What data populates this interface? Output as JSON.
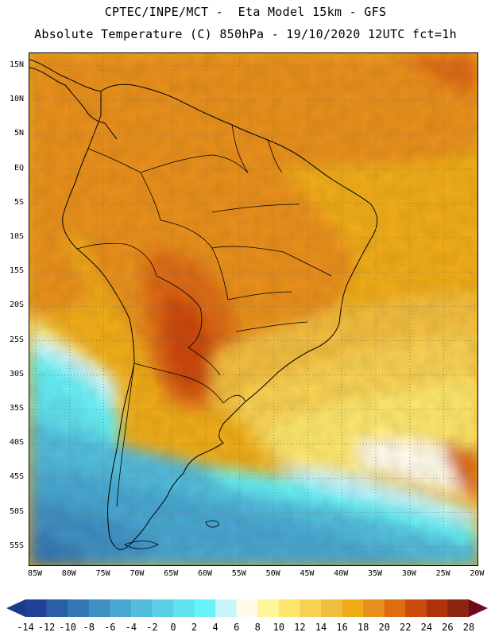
{
  "title": {
    "line1": "CPTEC/INPE/MCT -  Eta Model 15km - GFS",
    "line2": "Absolute Temperature (C) 850hPa - 19/10/2020 12UTC fct=1h"
  },
  "map": {
    "lat_labels": [
      "15N",
      "10N",
      "5N",
      "EQ",
      "5S",
      "10S",
      "15S",
      "20S",
      "25S",
      "30S",
      "35S",
      "40S",
      "45S",
      "50S",
      "55S"
    ],
    "lon_labels": [
      "85W",
      "80W",
      "75W",
      "70W",
      "65W",
      "60W",
      "55W",
      "50W",
      "45W",
      "40W",
      "35W",
      "30W",
      "25W",
      "20W"
    ],
    "frame_color": "#000000",
    "grid_color": "#777777"
  },
  "colorbar": {
    "labels": [
      "-14",
      "-12",
      "-10",
      "-8",
      "-6",
      "-4",
      "-2",
      "0",
      "2",
      "4",
      "6",
      "8",
      "10",
      "12",
      "14",
      "16",
      "18",
      "20",
      "22",
      "24",
      "26",
      "28"
    ],
    "under_color": "#1d3b8a",
    "over_color": "#6e0a1c",
    "colors": [
      "#1f4296",
      "#2a5ea7",
      "#3577b5",
      "#3f8fc3",
      "#48a7d1",
      "#53bcdc",
      "#5ccfe6",
      "#62e2ee",
      "#67f2f7",
      "#c8f4fa",
      "#fffbea",
      "#fff69a",
      "#fde66d",
      "#f8d152",
      "#f2be3f",
      "#f0ad1a",
      "#e9901c",
      "#de6c12",
      "#cc4a0c",
      "#ad330a",
      "#8c2512"
    ]
  }
}
